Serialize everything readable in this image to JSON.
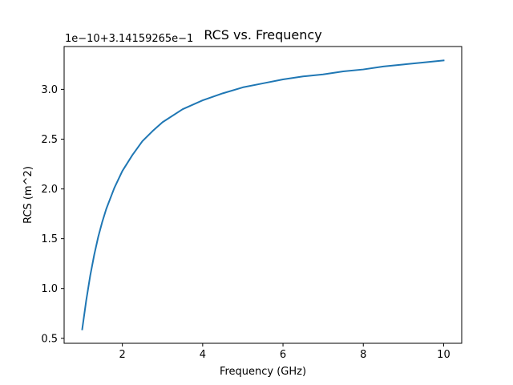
{
  "chart_data": {
    "type": "line",
    "title": "RCS vs. Frequency",
    "xlabel": "Frequency (GHz)",
    "ylabel": "RCS (m^2)",
    "y_offset_label": "1e−10+3.14159265e−1",
    "xlim": [
      0.55,
      10.45
    ],
    "ylim": [
      0.45,
      3.43
    ],
    "grid": false,
    "x_ticks": [
      {
        "value": 2,
        "label": "2"
      },
      {
        "value": 4,
        "label": "4"
      },
      {
        "value": 6,
        "label": "6"
      },
      {
        "value": 8,
        "label": "8"
      },
      {
        "value": 10,
        "label": "10"
      }
    ],
    "y_ticks": [
      {
        "value": 0.5,
        "label": "0.5"
      },
      {
        "value": 1.0,
        "label": "1.0"
      },
      {
        "value": 1.5,
        "label": "1.5"
      },
      {
        "value": 2.0,
        "label": "2.0"
      },
      {
        "value": 2.5,
        "label": "2.5"
      },
      {
        "value": 3.0,
        "label": "3.0"
      }
    ],
    "series": [
      {
        "color": "#1f77b4",
        "x": [
          1.0,
          1.1,
          1.2,
          1.3,
          1.4,
          1.5,
          1.6,
          1.8,
          2.0,
          2.25,
          2.5,
          2.75,
          3.0,
          3.5,
          4.0,
          4.5,
          5.0,
          5.5,
          6.0,
          6.5,
          7.0,
          7.5,
          8.0,
          8.5,
          9.0,
          9.5,
          10.0
        ],
        "y": [
          0.59,
          0.88,
          1.13,
          1.34,
          1.52,
          1.67,
          1.8,
          2.01,
          2.18,
          2.34,
          2.48,
          2.58,
          2.67,
          2.8,
          2.89,
          2.96,
          3.02,
          3.06,
          3.1,
          3.13,
          3.15,
          3.18,
          3.2,
          3.23,
          3.25,
          3.27,
          3.29
        ]
      }
    ]
  }
}
